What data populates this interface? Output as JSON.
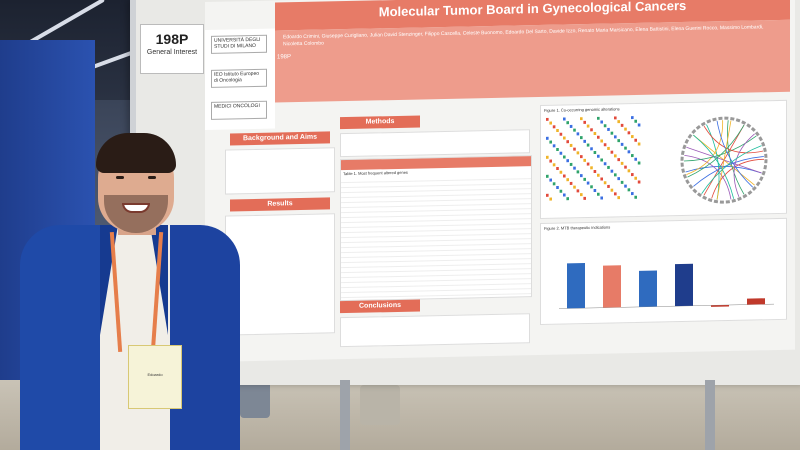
{
  "booth": {
    "poster_number": "198P",
    "category": "General Interest"
  },
  "poster": {
    "title": "Molecular Tumor Board in Gynecological Cancers",
    "poster_id": "198P",
    "authors": "Edoardo Crimini, Giuseppe Curigliano, Julian David Stenzinger, Filippo Cascella, Celeste Buonomo, Edoardo Del Sarto, Davide Izzo, Renato Maria Marsicano, Elena Battistini, Elena Guerini Rocco, Massimo Lombardi, Nicoletta Colombo",
    "logos": [
      "UNIVERSITÀ DEGLI STUDI DI MILANO",
      "IEO Istituto Europeo di Oncologia",
      "MEDICI ONCOLOGI"
    ],
    "sections": {
      "background": "Background and Aims",
      "methods": "Methods",
      "results": "Results",
      "conclusions": "Conclusions"
    },
    "figures": {
      "fig1": "Figure 1. Co-occurring genomic alterations",
      "fig2": "Figure 2. MTB therapeutic indications"
    },
    "table_caption": "Table 1. Most frequent altered genes"
  },
  "attendee": {
    "badge_name": "Edoardo"
  },
  "colors": {
    "poster_accent": "#e77b67",
    "jacket": "#1f4aa8",
    "carpet": "#2b52b0"
  },
  "chart_data": {
    "type": "bar",
    "categories": [
      "",
      "",
      "",
      "",
      "",
      ""
    ],
    "values": [
      0.75,
      0.7,
      0.6,
      0.7,
      0.0,
      0.1
    ],
    "title": "Figure 2. MTB therapeutic indications",
    "xlabel": "",
    "ylabel": ""
  }
}
